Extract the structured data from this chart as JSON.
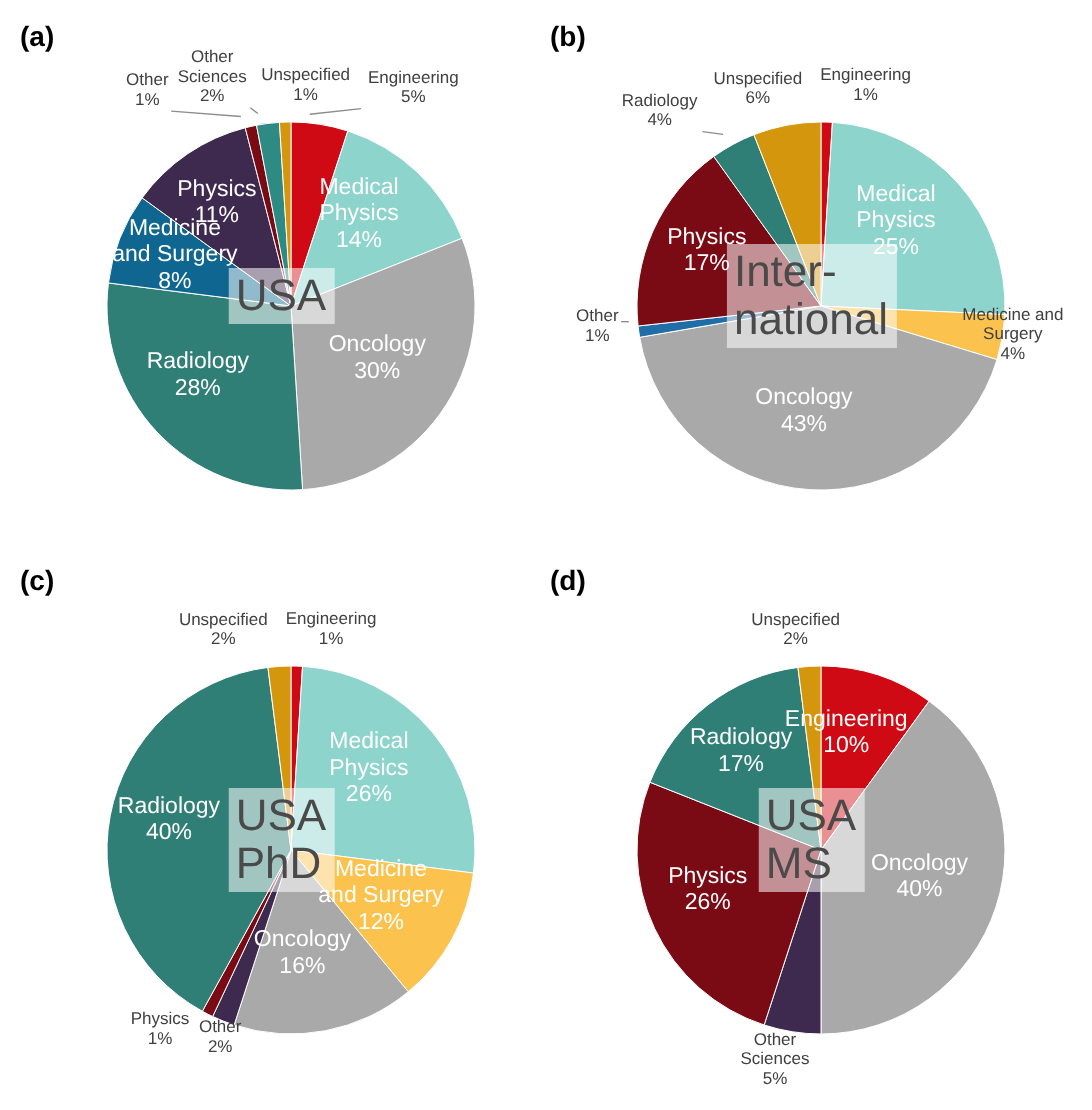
{
  "chart_data": [
    {
      "type": "pie",
      "title": "(a)",
      "annotations": [
        "USA"
      ],
      "categories": [
        "Engineering",
        "Medical Physics",
        "Oncology",
        "Radiology",
        "Medicine and Surgery",
        "Physics",
        "Other",
        "Other Sciences",
        "Unspecified"
      ],
      "values": [
        5,
        14,
        30,
        28,
        8,
        11,
        1,
        2,
        1
      ],
      "value_labels": [
        "5%",
        "14%",
        "30%",
        "28%",
        "8%",
        "11%",
        "1%",
        "2%",
        "1%"
      ],
      "colors": [
        "#d00a14",
        "#8dd4cc",
        "#a9a9a9",
        "#2f7f76",
        "#0f6690",
        "#3e2a4f",
        "#7a0a14",
        "#2e8b84",
        "#d4960c"
      ]
    },
    {
      "type": "pie",
      "title": "(b)",
      "annotations": [
        "Inter-\nnational"
      ],
      "categories": [
        "Engineering",
        "Medical Physics",
        "Medicine and Surgery",
        "Oncology",
        "Other",
        "Physics",
        "Radiology",
        "Unspecified"
      ],
      "values": [
        1,
        25,
        4,
        43,
        1,
        17,
        4,
        6
      ],
      "value_labels": [
        "1%",
        "25%",
        "4%",
        "43%",
        "1%",
        "17%",
        "4%",
        "6%"
      ],
      "colors": [
        "#d00a14",
        "#8dd4cc",
        "#fcc24e",
        "#a9a9a9",
        "#1f6ea8",
        "#7a0a14",
        "#2f7f76",
        "#d4960c"
      ]
    },
    {
      "type": "pie",
      "title": "(c)",
      "annotations": [
        "USA\nPhD"
      ],
      "categories": [
        "Engineering",
        "Medical Physics",
        "Medicine and Surgery",
        "Oncology",
        "Other",
        "Physics",
        "Radiology",
        "Unspecified"
      ],
      "values": [
        1,
        26,
        12,
        16,
        2,
        1,
        40,
        2
      ],
      "value_labels": [
        "1%",
        "26%",
        "12%",
        "16%",
        "2%",
        "1%",
        "40%",
        "2%"
      ],
      "colors": [
        "#d00a14",
        "#8dd4cc",
        "#fcc24e",
        "#a9a9a9",
        "#3e2a4f",
        "#7a0a14",
        "#2f7f76",
        "#d4960c"
      ]
    },
    {
      "type": "pie",
      "title": "(d)",
      "annotations": [
        "USA\nMS"
      ],
      "categories": [
        "Engineering",
        "Oncology",
        "Other Sciences",
        "Physics",
        "Radiology",
        "Unspecified"
      ],
      "values": [
        10,
        40,
        5,
        26,
        17,
        2
      ],
      "value_labels": [
        "10%",
        "40%",
        "5%",
        "26%",
        "17%",
        "2%"
      ],
      "colors": [
        "#d00a14",
        "#a9a9a9",
        "#3e2a4f",
        "#7a0a14",
        "#2f7f76",
        "#d4960c"
      ]
    }
  ]
}
